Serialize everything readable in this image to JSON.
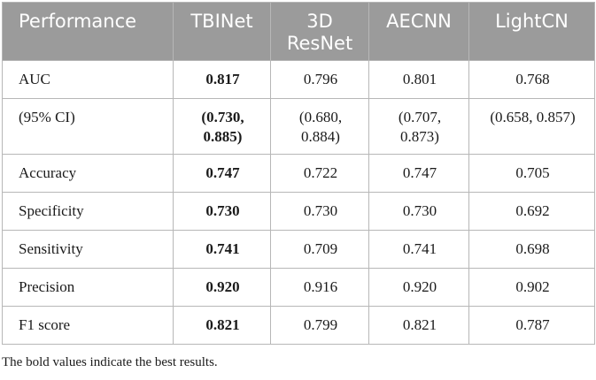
{
  "table": {
    "headers": [
      "Performance",
      "TBINet",
      "3D ResNet",
      "AECNN",
      "LightCN"
    ],
    "rows": [
      {
        "label": "AUC",
        "cells": [
          "0.817",
          "0.796",
          "0.801",
          "0.768"
        ]
      },
      {
        "label": "(95% CI)",
        "cells": [
          "(0.730, 0.885)",
          "(0.680, 0.884)",
          "(0.707, 0.873)",
          "(0.658, 0.857)"
        ]
      },
      {
        "label": "Accuracy",
        "cells": [
          "0.747",
          "0.722",
          "0.747",
          "0.705"
        ]
      },
      {
        "label": "Specificity",
        "cells": [
          "0.730",
          "0.730",
          "0.730",
          "0.692"
        ]
      },
      {
        "label": "Sensitivity",
        "cells": [
          "0.741",
          "0.709",
          "0.741",
          "0.698"
        ]
      },
      {
        "label": "Precision",
        "cells": [
          "0.920",
          "0.916",
          "0.920",
          "0.902"
        ]
      },
      {
        "label": "F1 score",
        "cells": [
          "0.821",
          "0.799",
          "0.821",
          "0.787"
        ]
      }
    ],
    "footnote": "The bold values indicate the best results."
  },
  "colors": {
    "header_bg": "#9b9b9b",
    "header_text": "#ffffff",
    "border": "#b7b7b7"
  }
}
